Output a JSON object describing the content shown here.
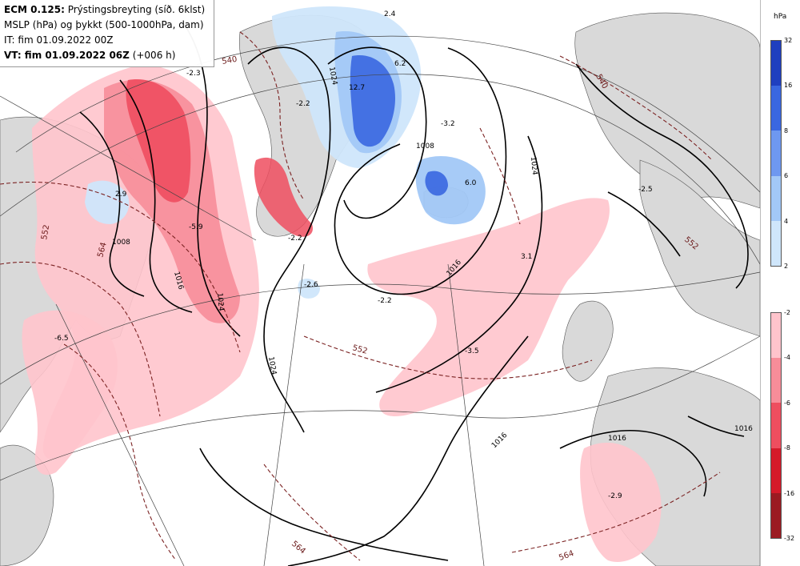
{
  "header": {
    "line1_bold": "ECM 0.125:",
    "line1_rest": " Prýstingsbreyting (síð. 6klst)",
    "line2": "MSLP (hPa) og þykkt (500-1000hPa, dam)",
    "line3": "IT: fim 01.09.2022 00Z",
    "line4_bold": "VT: fim 01.09.2022 06Z",
    "line4_rest": " (+006 h)"
  },
  "legend": {
    "unit": "hPa",
    "rise_scale": {
      "ticks": [
        "32",
        "16",
        "8",
        "6",
        "4",
        "2"
      ],
      "colors": [
        "#1f3fbf",
        "#3a67e0",
        "#6e98f0",
        "#a2c8f7",
        "#cfe6fb"
      ]
    },
    "fall_scale": {
      "ticks": [
        "-2",
        "-4",
        "-6",
        "-8",
        "-16",
        "-32"
      ],
      "colors": [
        "#ffc4cc",
        "#f78d99",
        "#ee4e5f",
        "#d51a2a",
        "#9b1b22"
      ]
    }
  },
  "map_labels": {
    "isobars": [
      "1024",
      "1008",
      "1016",
      "1024",
      "1024",
      "1016",
      "1008",
      "1024",
      "1016",
      "1016",
      "1016"
    ],
    "thickness": [
      "540",
      "552",
      "564",
      "552",
      "564",
      "540",
      "552",
      "564"
    ],
    "values": [
      "2.4",
      "-2.3",
      "-2.2",
      "2.9",
      "-5.9",
      "-6.5",
      "12.7",
      "6.2",
      "-3.2",
      "6.0",
      "-2.6",
      "-2.2",
      "3.1",
      "-3.5",
      "-2.5",
      "-2.9",
      "-2.2"
    ]
  },
  "colors": {
    "land": "#d9d9d9",
    "sea": "#ffffff",
    "isobar": "#000000",
    "thickness": "#7b2222"
  }
}
